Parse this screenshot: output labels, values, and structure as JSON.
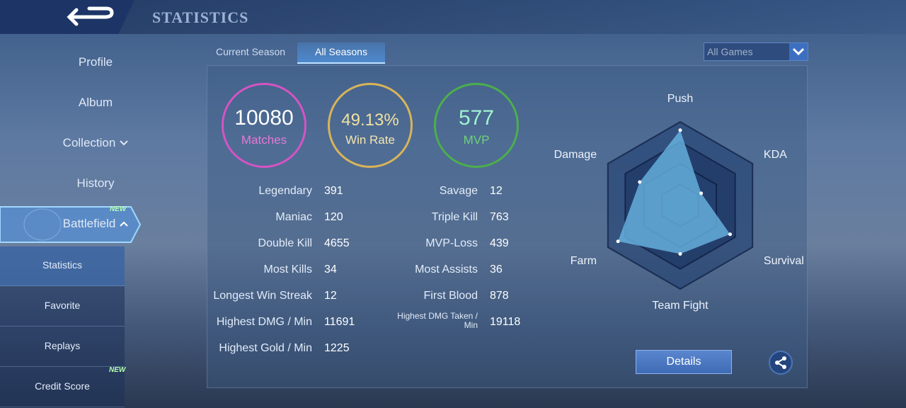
{
  "header": {
    "title": "STATISTICS"
  },
  "sidebar": {
    "items": [
      "Profile",
      "Album",
      "Collection",
      "History",
      "Battlefield"
    ],
    "subitems": [
      "Statistics",
      "Favorite",
      "Replays",
      "Credit Score"
    ],
    "badges": [
      "NEW",
      "NEW"
    ]
  },
  "tabs": [
    "Current Season",
    "All Seasons"
  ],
  "filter": "All Games",
  "summary": [
    {
      "value": 10080,
      "label": "Matches"
    },
    {
      "value": "49.13%",
      "label": "Win Rate"
    },
    {
      "value": 577,
      "label": "MVP"
    }
  ],
  "stats": {
    "left": [
      [
        "Legendary",
        391
      ],
      [
        "Maniac",
        120
      ],
      [
        "Double Kill",
        4655
      ],
      [
        "Most Kills",
        34
      ],
      [
        "Longest Win Streak",
        12
      ],
      [
        "Highest DMG / Min",
        11691
      ],
      [
        "Highest Gold / Min",
        1225
      ]
    ],
    "right": [
      [
        "Savage",
        12
      ],
      [
        "Triple Kill",
        763
      ],
      [
        "MVP-Loss",
        439
      ],
      [
        "Most Assists",
        36
      ],
      [
        "First Blood",
        878
      ],
      [
        "Highest DMG Taken / Min",
        19118
      ]
    ]
  },
  "radar": {
    "axes": [
      "Push",
      "KDA",
      "Survival",
      "Team Fight",
      "Farm",
      "Damage"
    ],
    "values": [
      90,
      29,
      69,
      58,
      86,
      56
    ],
    "range": [
      0,
      100
    ]
  },
  "button": "Details"
}
